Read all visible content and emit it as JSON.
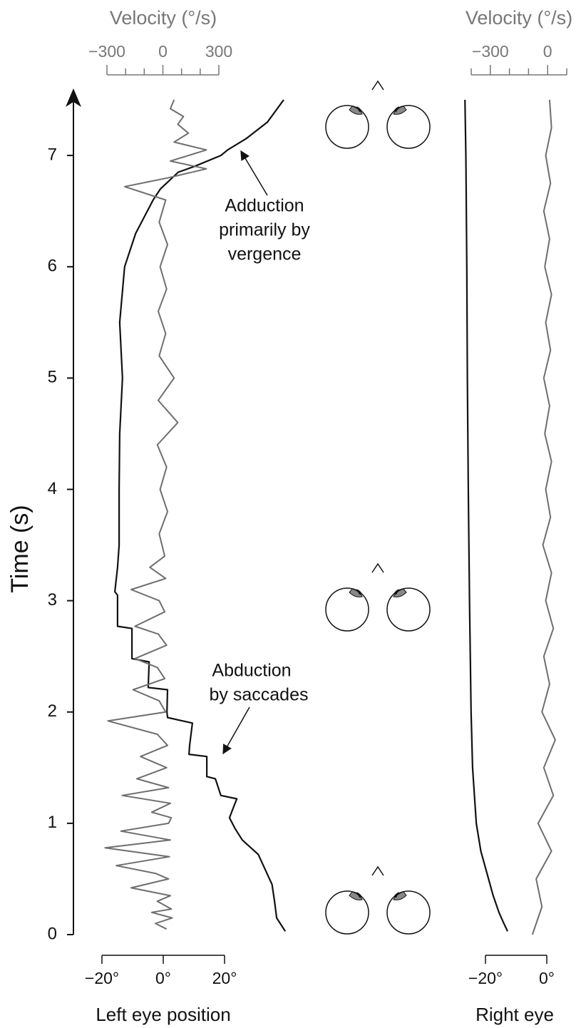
{
  "chart_data": [
    {
      "type": "line",
      "ylabel": "Time (s)",
      "ylim": [
        0,
        7.5
      ],
      "yticks": [
        0,
        1,
        2,
        3,
        4,
        5,
        6,
        7
      ],
      "xlabel": "Left eye position",
      "xlim": [
        -20,
        20
      ],
      "xticks": [
        {
          "value": -20,
          "label": "−20°"
        },
        {
          "value": 0,
          "label": "0°"
        },
        {
          "value": 20,
          "label": "20°"
        }
      ],
      "x2label": "Velocity (°/s)",
      "x2lim": [
        -300,
        300
      ],
      "x2ticks": [
        {
          "value": -300,
          "label": "−300"
        },
        0,
        300
      ],
      "x2minorticks": [
        -200,
        -100,
        100,
        200
      ],
      "series": [
        {
          "color": "#111111",
          "axis": "x",
          "t": [
            0.03,
            0.15,
            0.3,
            0.45,
            0.6,
            0.72,
            0.85,
            0.95,
            1.05,
            1.15,
            1.22,
            1.25,
            1.4,
            1.42,
            1.6,
            1.62,
            1.7,
            1.9,
            1.95,
            2.0,
            2.2,
            2.22,
            2.45,
            2.48,
            2.75,
            2.77,
            3.05,
            3.08,
            3.3,
            3.5,
            4.0,
            4.5,
            5.0,
            5.5,
            6.0,
            6.3,
            6.6,
            6.7,
            6.85,
            6.9,
            7.0,
            7.05,
            7.15,
            7.3,
            7.5
          ],
          "values": [
            39.8,
            37,
            36.3,
            35.5,
            33,
            31,
            25.8,
            23.5,
            21.6,
            23,
            24,
            18.8,
            17,
            14.2,
            14.2,
            8.4,
            8.6,
            9.5,
            1.4,
            1.2,
            1.4,
            -4.9,
            -4.6,
            -10.2,
            -10.2,
            -14.9,
            -14.9,
            -15.8,
            -14.9,
            -14.4,
            -14.4,
            -14.2,
            -13.3,
            -14.2,
            -12.6,
            -9,
            -3.3,
            -0.9,
            4.9,
            10,
            18.8,
            21,
            27,
            34,
            39.3
          ]
        },
        {
          "color": "#6e6e6e",
          "axis": "x2",
          "t": [
            0.05,
            0.1,
            0.15,
            0.2,
            0.23,
            0.3,
            0.35,
            0.42,
            0.5,
            0.55,
            0.62,
            0.7,
            0.78,
            0.85,
            0.93,
            1.0,
            1.05,
            1.1,
            1.18,
            1.25,
            1.32,
            1.4,
            1.5,
            1.6,
            1.7,
            1.8,
            1.92,
            2.0,
            2.1,
            2.2,
            2.3,
            2.4,
            2.48,
            2.6,
            2.7,
            2.77,
            2.9,
            3.0,
            3.1,
            3.2,
            3.3,
            3.4,
            3.6,
            3.8,
            4.0,
            4.2,
            4.4,
            4.6,
            4.8,
            5.0,
            5.2,
            5.4,
            5.6,
            5.8,
            6.0,
            6.2,
            6.4,
            6.6,
            6.72,
            6.8,
            6.88,
            6.95,
            7.05,
            7.12,
            7.2,
            7.28,
            7.35,
            7.42,
            7.5
          ],
          "values": [
            20,
            -40,
            50,
            -60,
            45,
            -30,
            40,
            -170,
            30,
            -40,
            -250,
            35,
            -310,
            40,
            -225,
            30,
            45,
            -60,
            40,
            -218,
            30,
            -140,
            20,
            -120,
            25,
            -30,
            -295,
            15,
            -20,
            -160,
            10,
            -30,
            -150,
            20,
            -25,
            -150,
            10,
            -20,
            -170,
            15,
            -70,
            10,
            -20,
            25,
            -15,
            20,
            -30,
            80,
            -25,
            60,
            -20,
            15,
            -25,
            20,
            -15,
            25,
            -20,
            15,
            -205,
            30,
            233,
            40,
            233,
            60,
            137,
            80,
            110,
            40,
            60
          ]
        }
      ],
      "annotations": [
        {
          "lines": [
            "Adduction",
            "primarily by",
            "vergence"
          ]
        },
        {
          "lines": [
            "Abduction",
            "by saccades"
          ]
        }
      ]
    },
    {
      "type": "line",
      "xlabel": "Right eye",
      "xlim": [
        -20,
        0
      ],
      "xticks": [
        {
          "value": -20,
          "label": "−20°"
        },
        {
          "value": 0,
          "label": "0°"
        }
      ],
      "x2label": "Velocity (°/s)",
      "x2lim": [
        -400,
        100
      ],
      "x2ticks": [
        {
          "value": -300,
          "label": "−300"
        },
        0
      ],
      "x2minorticks": [
        -400,
        -200,
        -100,
        100
      ],
      "series": [
        {
          "color": "#111111",
          "axis": "x",
          "t": [
            0.03,
            0.1,
            0.2,
            0.35,
            0.5,
            0.75,
            1,
            1.5,
            2,
            3,
            4,
            5,
            6,
            7,
            7.5
          ],
          "values": [
            -12.8,
            -14,
            -15.6,
            -17.5,
            -19,
            -21.5,
            -23,
            -24.2,
            -24.7,
            -25.2,
            -25.6,
            -25.9,
            -26.1,
            -26.4,
            -26.7
          ]
        },
        {
          "color": "#6e6e6e",
          "axis": "x2",
          "t": [
            0,
            0.25,
            0.5,
            0.75,
            1,
            1.25,
            1.5,
            1.75,
            2,
            2.25,
            2.5,
            2.75,
            3,
            3.25,
            3.5,
            3.75,
            4,
            4.25,
            4.5,
            4.75,
            5,
            5.25,
            5.5,
            5.75,
            6,
            6.25,
            6.5,
            6.75,
            7,
            7.25,
            7.5
          ],
          "values": [
            -80,
            -30,
            -60,
            20,
            -50,
            30,
            -20,
            40,
            -30,
            10,
            -20,
            30,
            -10,
            20,
            -25,
            15,
            -10,
            20,
            -15,
            10,
            -20,
            15,
            -10,
            20,
            -15,
            10,
            -20,
            15,
            -10,
            20,
            10
          ]
        }
      ]
    }
  ]
}
